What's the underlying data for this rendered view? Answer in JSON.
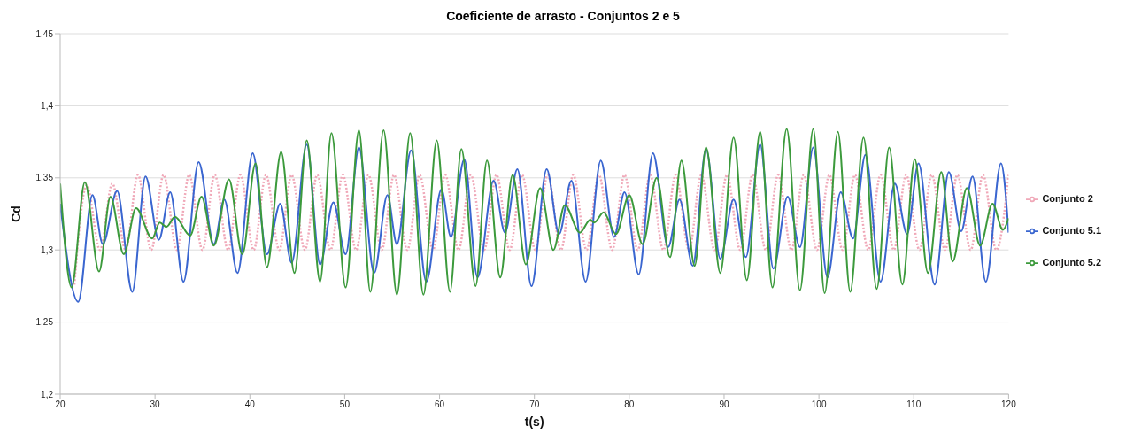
{
  "chart_data": {
    "type": "line",
    "title": "Coeficiente de arrasto - Conjuntos 2 e 5",
    "xlabel": "t(s)",
    "ylabel": "Cd",
    "xlim": [
      20,
      120
    ],
    "xticks": [
      20,
      30,
      40,
      50,
      60,
      70,
      80,
      90,
      100,
      110,
      120
    ],
    "ylim": [
      1.2,
      1.45
    ],
    "yticks": [
      {
        "value": 1.2,
        "label": "1,2"
      },
      {
        "value": 1.25,
        "label": "1,25"
      },
      {
        "value": 1.3,
        "label": "1,3"
      },
      {
        "value": 1.35,
        "label": "1,35"
      },
      {
        "value": 1.4,
        "label": "1,4"
      },
      {
        "value": 1.45,
        "label": "1,45"
      }
    ],
    "grid": "y",
    "legend": "right",
    "marker": "none",
    "series": [
      {
        "name": "Conjunto 2",
        "color": "#f0a8b8",
        "line_style": "dotted",
        "x": [
          21.5,
          22.8,
          24.2,
          25.5,
          26.9,
          28.2,
          29.6,
          30.9,
          32.3,
          33.6,
          35.0,
          36.3,
          37.7,
          39.0,
          40.4,
          41.7,
          43.1,
          44.4,
          45.8,
          47.1,
          48.5,
          49.8,
          51.2,
          52.5,
          53.9,
          55.2,
          56.6,
          57.9,
          59.3,
          60.6,
          62.0,
          63.3,
          64.7,
          66.0,
          67.4,
          68.7,
          70.1,
          71.4,
          72.8,
          74.1,
          75.5,
          76.8,
          78.2,
          79.5,
          80.9,
          82.2,
          83.6,
          84.9,
          86.3,
          87.6,
          89.0,
          90.3,
          91.7,
          93.0,
          94.4,
          95.7,
          97.1,
          98.4,
          99.8,
          101.1,
          102.5,
          103.8,
          105.2,
          106.5,
          107.9,
          109.2,
          110.6,
          111.9,
          113.3,
          114.6,
          116.0,
          117.3,
          118.7,
          120
        ],
        "values": [
          1.276,
          1.345,
          1.3,
          1.346,
          1.3,
          1.352,
          1.3,
          1.352,
          1.3,
          1.352,
          1.3,
          1.352,
          1.3,
          1.352,
          1.3,
          1.352,
          1.3,
          1.352,
          1.3,
          1.352,
          1.3,
          1.352,
          1.3,
          1.352,
          1.3,
          1.352,
          1.3,
          1.352,
          1.3,
          1.352,
          1.3,
          1.352,
          1.3,
          1.352,
          1.3,
          1.352,
          1.3,
          1.352,
          1.3,
          1.352,
          1.3,
          1.352,
          1.3,
          1.352,
          1.3,
          1.352,
          1.3,
          1.352,
          1.3,
          1.352,
          1.3,
          1.352,
          1.3,
          1.352,
          1.3,
          1.352,
          1.3,
          1.352,
          1.3,
          1.352,
          1.3,
          1.352,
          1.3,
          1.352,
          1.3,
          1.352,
          1.3,
          1.352,
          1.3,
          1.352,
          1.3,
          1.352,
          1.3,
          1.352
        ]
      },
      {
        "name": "Conjunto 5.1",
        "color": "#3a66d0",
        "line_style": "solid",
        "x": [
          20,
          21.9,
          23.4,
          24.5,
          26.0,
          27.6,
          29.0,
          30.4,
          31.6,
          33.0,
          34.6,
          36.2,
          37.3,
          38.7,
          40.3,
          41.8,
          43.2,
          44.4,
          46.0,
          47.4,
          48.8,
          50.1,
          51.5,
          53.1,
          54.5,
          55.5,
          57.0,
          58.6,
          60.2,
          61.2,
          62.6,
          64.0,
          65.7,
          66.9,
          68.2,
          69.7,
          71.3,
          72.6,
          73.9,
          75.4,
          77.0,
          78.4,
          79.5,
          81.0,
          82.5,
          84.1,
          85.3,
          86.7,
          88.1,
          89.6,
          91.0,
          92.3,
          93.8,
          95.2,
          96.7,
          98.0,
          99.4,
          100.9,
          102.3,
          103.6,
          104.9,
          106.5,
          108.0,
          109.3,
          110.5,
          112.2,
          113.7,
          115.0,
          116.2,
          117.6,
          119.2,
          120
        ],
        "values": [
          1.332,
          1.264,
          1.338,
          1.304,
          1.341,
          1.271,
          1.351,
          1.307,
          1.34,
          1.278,
          1.361,
          1.304,
          1.335,
          1.284,
          1.367,
          1.297,
          1.332,
          1.291,
          1.373,
          1.29,
          1.333,
          1.297,
          1.371,
          1.284,
          1.338,
          1.304,
          1.369,
          1.278,
          1.342,
          1.309,
          1.363,
          1.281,
          1.348,
          1.312,
          1.356,
          1.275,
          1.356,
          1.311,
          1.348,
          1.278,
          1.362,
          1.309,
          1.34,
          1.283,
          1.367,
          1.302,
          1.335,
          1.289,
          1.37,
          1.294,
          1.335,
          1.295,
          1.373,
          1.287,
          1.337,
          1.302,
          1.371,
          1.281,
          1.34,
          1.308,
          1.366,
          1.278,
          1.346,
          1.311,
          1.36,
          1.276,
          1.354,
          1.313,
          1.351,
          1.278,
          1.36,
          1.312
        ]
      },
      {
        "name": "Conjunto 5.2",
        "color": "#3c9a3c",
        "line_style": "solid",
        "x": [
          20,
          21.2,
          22.6,
          24.1,
          25.3,
          26.7,
          28.0,
          29.7,
          30.5,
          31.2,
          32.1,
          33.7,
          34.9,
          36.2,
          37.8,
          39.2,
          40.6,
          41.8,
          43.3,
          44.7,
          46.0,
          47.4,
          48.6,
          50.1,
          51.5,
          52.7,
          54.1,
          55.5,
          56.9,
          58.3,
          59.7,
          61.1,
          62.3,
          63.8,
          65.0,
          66.4,
          67.7,
          69.1,
          70.6,
          72.0,
          73.2,
          74.8,
          75.9,
          76.3,
          77.3,
          78.6,
          80.0,
          81.4,
          82.9,
          84.3,
          85.5,
          86.9,
          88.1,
          89.6,
          91.0,
          92.4,
          93.8,
          95.1,
          96.6,
          98.0,
          99.4,
          100.6,
          102.0,
          103.3,
          104.7,
          106.1,
          107.4,
          108.8,
          110.1,
          111.5,
          112.9,
          114.1,
          115.6,
          117.0,
          118.3,
          119.4,
          120
        ],
        "values": [
          1.346,
          1.274,
          1.347,
          1.285,
          1.337,
          1.297,
          1.329,
          1.308,
          1.319,
          1.316,
          1.323,
          1.31,
          1.337,
          1.303,
          1.349,
          1.297,
          1.36,
          1.288,
          1.368,
          1.284,
          1.376,
          1.278,
          1.381,
          1.274,
          1.383,
          1.271,
          1.383,
          1.269,
          1.381,
          1.269,
          1.376,
          1.271,
          1.37,
          1.275,
          1.362,
          1.281,
          1.352,
          1.29,
          1.343,
          1.3,
          1.331,
          1.312,
          1.321,
          1.319,
          1.326,
          1.311,
          1.338,
          1.304,
          1.35,
          1.295,
          1.362,
          1.289,
          1.371,
          1.284,
          1.378,
          1.279,
          1.382,
          1.274,
          1.384,
          1.272,
          1.384,
          1.27,
          1.382,
          1.271,
          1.378,
          1.273,
          1.371,
          1.276,
          1.363,
          1.284,
          1.354,
          1.292,
          1.343,
          1.303,
          1.332,
          1.314,
          1.322
        ]
      }
    ]
  }
}
